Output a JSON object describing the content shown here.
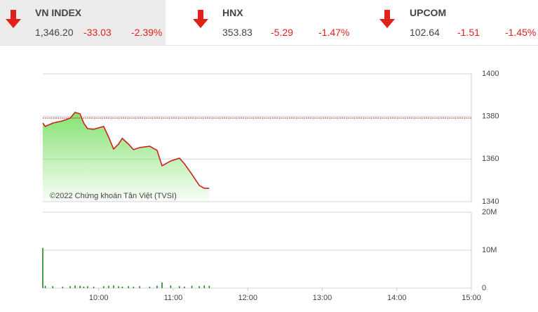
{
  "header": {
    "indices": [
      {
        "name": "VN INDEX",
        "value": "1,346.20",
        "change": "-33.03",
        "percent": "-2.39%"
      },
      {
        "name": "HNX",
        "value": "353.83",
        "change": "-5.29",
        "percent": "-1.47%"
      },
      {
        "name": "UPCOM",
        "value": "102.64",
        "change": "-1.51",
        "percent": "-1.45%"
      }
    ]
  },
  "chart_data": [
    {
      "type": "line",
      "watermark": "©2022 Chứng khoán Tân Việt (TVSI)",
      "x": [
        "09:15",
        "09:17",
        "09:23",
        "09:31",
        "09:37",
        "09:41",
        "09:45",
        "09:48",
        "09:51",
        "09:56",
        "10:04",
        "10:08",
        "10:12",
        "10:16",
        "10:19",
        "10:24",
        "10:28",
        "10:33",
        "10:41",
        "10:47",
        "10:51",
        "10:58",
        "11:05",
        "11:09",
        "11:15",
        "11:21",
        "11:25",
        "11:29"
      ],
      "values": [
        1376.9,
        1375.3,
        1376.9,
        1377.9,
        1379.2,
        1381.9,
        1381.2,
        1376.9,
        1374.3,
        1374.0,
        1375.3,
        1370.3,
        1364.7,
        1367.0,
        1369.7,
        1367.0,
        1364.4,
        1365.4,
        1366.0,
        1364.1,
        1356.8,
        1359.1,
        1360.4,
        1357.8,
        1352.9,
        1347.6,
        1346.3,
        1346.3
      ],
      "color": "#d0201b",
      "area_color": "#7ee06a",
      "reference": 1379.23,
      "xlim": [
        "09:15",
        "15:00"
      ],
      "ylim": [
        1340,
        1400
      ],
      "yticks": [
        1340,
        1360,
        1380,
        1400
      ],
      "grid": true
    },
    {
      "type": "bar",
      "x": [
        "09:15",
        "09:17",
        "09:23",
        "09:31",
        "09:37",
        "09:41",
        "09:45",
        "09:48",
        "09:51",
        "09:56",
        "10:04",
        "10:08",
        "10:12",
        "10:16",
        "10:19",
        "10:24",
        "10:28",
        "10:33",
        "10:41",
        "10:47",
        "10:51",
        "10:58",
        "11:05",
        "11:09",
        "11:15",
        "11:21",
        "11:25",
        "11:29"
      ],
      "values": [
        10600000,
        600000,
        500000,
        400000,
        500000,
        700000,
        600000,
        400000,
        500000,
        400000,
        500000,
        600000,
        700000,
        500000,
        400000,
        500000,
        400000,
        500000,
        400000,
        600000,
        1500000,
        700000,
        500000,
        400000,
        600000,
        500000,
        700000,
        600000
      ],
      "color": "#1f8a1f",
      "xlim": [
        "09:15",
        "15:00"
      ],
      "xticks": [
        "10:00",
        "11:00",
        "12:00",
        "13:00",
        "14:00",
        "15:00"
      ],
      "ylim": [
        0,
        20000000
      ],
      "yticks": [
        0,
        {
          "value": 10000000,
          "label": "10M"
        },
        {
          "value": 20000000,
          "label": "20M"
        }
      ],
      "grid": true
    }
  ]
}
